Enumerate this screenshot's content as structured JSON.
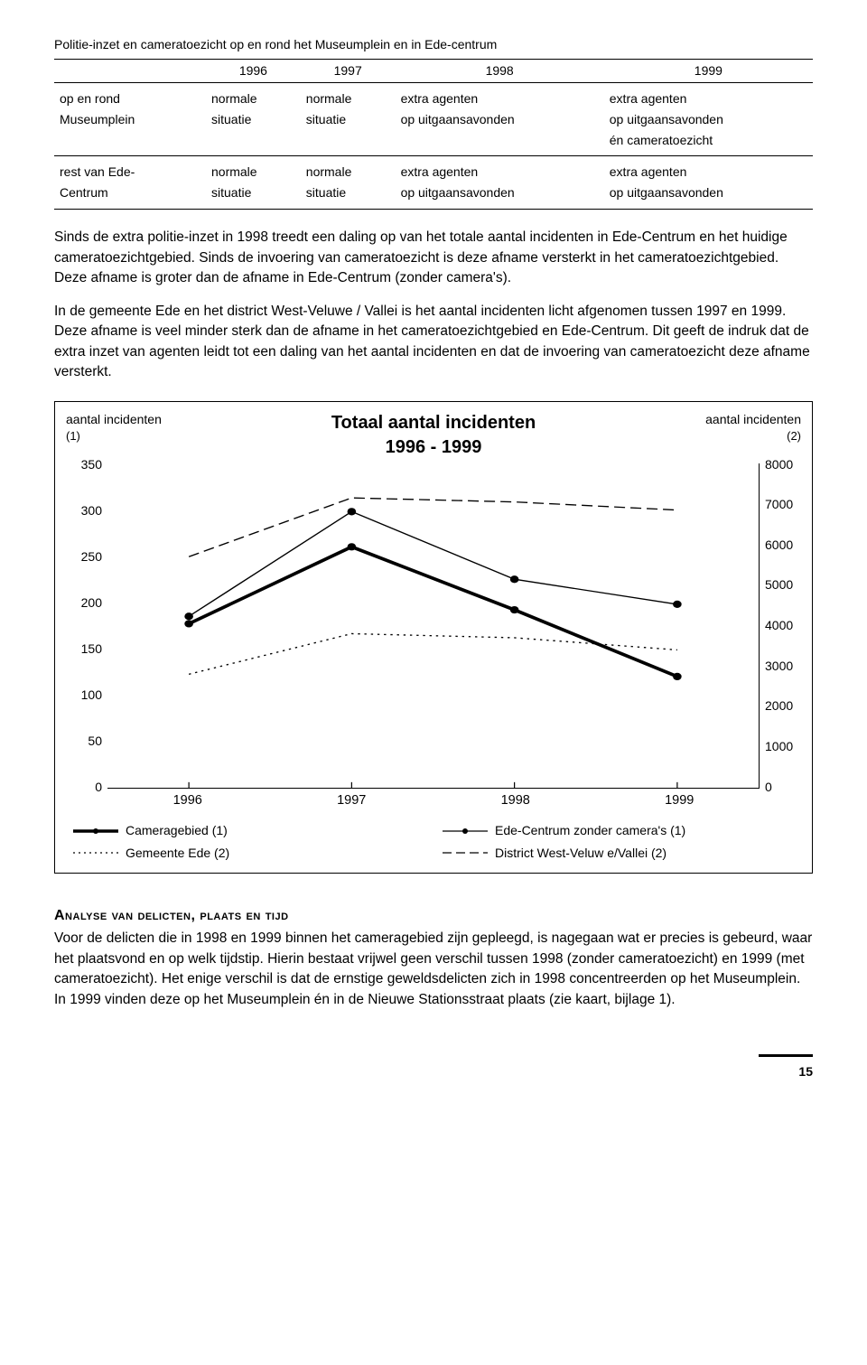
{
  "tableTitle": "Politie-inzet en cameratoezicht op en rond het Museumplein en in Ede-centrum",
  "table": {
    "headers": [
      "",
      "1996",
      "1997",
      "1998",
      "1999"
    ],
    "rows": [
      {
        "label": "op en rond",
        "c1996": "normale",
        "c1997": "normale",
        "c1998": "extra agenten",
        "c1999": "extra agenten"
      },
      {
        "label": "Museumplein",
        "c1996": "situatie",
        "c1997": "situatie",
        "c1998": "op uitgaansavonden",
        "c1999": "op uitgaansavonden"
      },
      {
        "label": "",
        "c1996": "",
        "c1997": "",
        "c1998": "",
        "c1999": "én cameratoezicht"
      },
      {
        "label": "rest van Ede-",
        "c1996": "normale",
        "c1997": "normale",
        "c1998": "extra agenten",
        "c1999": "extra agenten"
      },
      {
        "label": "Centrum",
        "c1996": "situatie",
        "c1997": "situatie",
        "c1998": "op uitgaansavonden",
        "c1999": "op uitgaansavonden"
      }
    ]
  },
  "para1": "Sinds de extra politie-inzet in 1998 treedt een daling op van het totale aantal incidenten in Ede-Centrum en het huidige cameratoezichtgebied. Sinds de invoering van cameratoezicht is deze afname versterkt in het cameratoezichtgebied. Deze afname is groter dan de afname in Ede-Centrum (zonder camera's).",
  "para2": "In de gemeente Ede en het district West-Veluwe / Vallei is het aantal incidenten licht afgenomen tussen 1997 en 1999. Deze afname is veel minder sterk dan de afname in het cameratoezichtgebied en Ede-Centrum. Dit geeft de indruk dat de extra inzet van agenten leidt tot een daling van het aantal incidenten en dat de invoering van cameratoezicht deze afname versterkt.",
  "chart": {
    "title": "Totaal aantal incidenten\n1996 - 1999",
    "leftAxisLabel": "aantal incidenten",
    "leftAxisSub": "(1)",
    "rightAxisLabel": "aantal incidenten",
    "rightAxisSub": "(2)",
    "leftMax": 350,
    "leftStep": 50,
    "rightMax": 8000,
    "rightStep": 1000,
    "leftTicks": [
      "350",
      "300",
      "250",
      "200",
      "150",
      "100",
      "50",
      "0"
    ],
    "rightTicks": [
      "8000",
      "7000",
      "6000",
      "5000",
      "4000",
      "3000",
      "2000",
      "1000",
      "0"
    ],
    "xLabels": [
      "1996",
      "1997",
      "1998",
      "1999"
    ],
    "series": {
      "cameragebied": {
        "name": "Cameragebied (1)",
        "axis": "left",
        "values": [
          177,
          260,
          192,
          120
        ],
        "strokeWidth": 3.5,
        "dash": "",
        "marker": true
      },
      "edeCentrum": {
        "name": "Ede-Centrum zonder camera's (1)",
        "axis": "left",
        "values": [
          185,
          298,
          225,
          198
        ],
        "strokeWidth": 1.3,
        "dash": "",
        "marker": true
      },
      "gemeenteEde": {
        "name": "Gemeente Ede (2)",
        "axis": "right",
        "values": [
          2800,
          3800,
          3700,
          3400
        ],
        "strokeWidth": 1.3,
        "dash": "2,4",
        "marker": false
      },
      "districtWest": {
        "name": "District West-Veluw e/Vallei (2)",
        "axis": "right",
        "values": [
          5700,
          7150,
          7050,
          6850
        ],
        "strokeWidth": 1.3,
        "dash": "10,5",
        "marker": false
      }
    },
    "plotHeight": 350,
    "colors": {
      "line": "#000000",
      "bg": "#ffffff"
    }
  },
  "sectionHeading": "Analyse van delicten, plaats en tijd",
  "para3": "Voor de delicten die in 1998 en 1999 binnen het cameragebied zijn gepleegd, is nagegaan wat er precies is gebeurd, waar het plaatsvond en op welk tijdstip. Hierin bestaat vrijwel geen verschil tussen 1998 (zonder cameratoezicht) en 1999 (met cameratoezicht). Het enige verschil is dat de ernstige geweldsdelicten zich in 1998 concentreerden op het Museumplein. In 1999 vinden deze op het Museumplein én in de Nieuwe Stationsstraat plaats (zie kaart, bijlage 1).",
  "pageNumber": "15"
}
